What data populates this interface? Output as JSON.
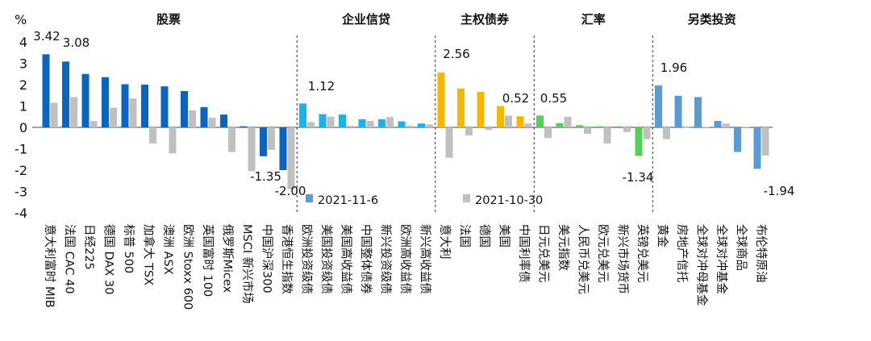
{
  "colors": {
    "previous": "#c0c0c0",
    "legend_current": "#5b9bd5"
  },
  "chart_data": {
    "type": "bar",
    "ylabel": "%",
    "ylim": [
      -4,
      4
    ],
    "yticks": [
      -4,
      -3,
      -2,
      -1,
      0,
      1,
      2,
      3,
      4
    ],
    "grid": false,
    "legend_placement": "inside-bottom-center",
    "series": [
      {
        "name": "2021-11-6"
      },
      {
        "name": "2021-10-30"
      }
    ],
    "groups": [
      {
        "label": "股票",
        "color": "#0a64c0",
        "categories": [
          "意大利富时 MIB",
          "法国 CAC 40",
          "日经225",
          "德国 DAX 30",
          "标普 500",
          "加拿大 TSX",
          "澳洲 ASX",
          "欧洲 Stoxx 600",
          "英国富时 100",
          "俄罗斯Micex",
          "MSCI 新兴市场",
          "中国沪深300",
          "香港恒生指数"
        ],
        "current": [
          3.42,
          3.08,
          2.5,
          2.35,
          2.02,
          2.0,
          1.92,
          1.7,
          0.95,
          0.6,
          0.05,
          -1.35,
          -2.0
        ],
        "previous": [
          1.15,
          1.42,
          0.3,
          0.92,
          1.35,
          -0.75,
          -1.22,
          0.8,
          0.45,
          -1.15,
          -2.05,
          -1.05,
          -2.9
        ]
      },
      {
        "label": "企业信贷",
        "color": "#1ab2ea",
        "categories": [
          "欧洲投资级债",
          "美国投资级债",
          "美国高收益债",
          "中国整体债券",
          "新兴投资级债",
          "欧洲高收益债",
          "新兴高收益债"
        ],
        "current": [
          1.12,
          0.62,
          0.6,
          0.38,
          0.38,
          0.28,
          0.18
        ],
        "previous": [
          0.25,
          0.5,
          0.08,
          0.3,
          0.48,
          0.08,
          0.14
        ]
      },
      {
        "label": "主权债券",
        "color": "#f5b800",
        "categories": [
          "意大利",
          "法国",
          "德国",
          "美国",
          "中国利率债"
        ],
        "current": [
          2.56,
          1.82,
          1.66,
          1.0,
          0.52
        ],
        "previous": [
          -1.42,
          -0.38,
          -0.12,
          0.55,
          0.18
        ]
      },
      {
        "label": "汇率",
        "color": "#56cf56",
        "categories": [
          "日元兑美元",
          "美元指数",
          "人民币兑美元",
          "欧元兑美元",
          "新兴市场货币",
          "英镑兑美元"
        ],
        "current": [
          0.55,
          0.2,
          0.1,
          0.05,
          0.05,
          -1.34
        ],
        "previous": [
          -0.5,
          0.5,
          -0.3,
          -0.75,
          -0.22,
          -0.55
        ]
      },
      {
        "label": "另类投资",
        "color": "#5b9bd5",
        "categories": [
          "黄金",
          "房地产信托",
          "全球对冲母基金",
          "全球对冲基金",
          "全球商品",
          "布伦特原油"
        ],
        "current": [
          1.96,
          1.48,
          1.42,
          0.3,
          -1.15,
          -1.94
        ],
        "previous": [
          -0.55,
          0.0,
          0.02,
          0.18,
          0.02,
          -1.32
        ]
      }
    ],
    "data_labels": [
      "3.42",
      "3.08",
      "-1.35",
      "-2.00",
      "1.12",
      "2.56",
      "0.52",
      "0.55",
      "-1.34",
      "1.96",
      "-1.94"
    ]
  }
}
